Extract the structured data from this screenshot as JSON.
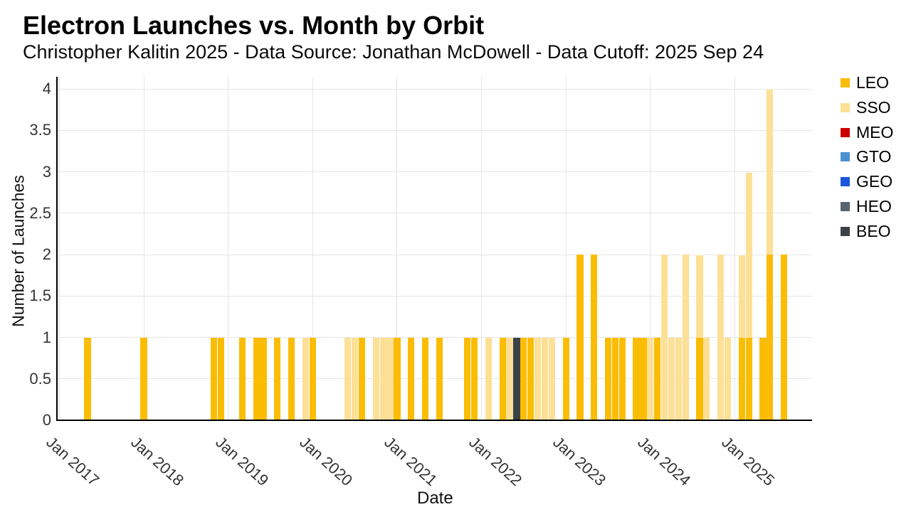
{
  "header": {
    "title": "Electron Launches vs. Month by Orbit",
    "subtitle": "Christopher Kalitin 2025 - Data Source: Jonathan McDowell - Data Cutoff: 2025 Sep 24"
  },
  "chart_data": {
    "type": "bar",
    "stacked": true,
    "title": "Electron Launches vs. Month by Orbit",
    "subtitle": "Christopher Kalitin 2025 - Data Source: Jonathan McDowell - Data Cutoff: 2025 Sep 24",
    "xlabel": "Date",
    "ylabel": "Number of Launches",
    "ylim": [
      0,
      4
    ],
    "yticks": [
      0,
      0.5,
      1,
      1.5,
      2,
      2.5,
      3,
      3.5,
      4
    ],
    "xticks": [
      "Jan 2017",
      "Jan 2018",
      "Jan 2019",
      "Jan 2020",
      "Jan 2021",
      "Jan 2022",
      "Jan 2023",
      "Jan 2024",
      "Jan 2025"
    ],
    "grid": true,
    "legend_position": "right",
    "series_order": [
      "LEO",
      "SSO",
      "MEO",
      "GTO",
      "GEO",
      "HEO",
      "BEO"
    ],
    "legend": [
      {
        "label": "LEO",
        "color": "#FBBC04"
      },
      {
        "label": "SSO",
        "color": "#FDE095"
      },
      {
        "label": "MEO",
        "color": "#CC0000"
      },
      {
        "label": "GTO",
        "color": "#4D90D1"
      },
      {
        "label": "GEO",
        "color": "#1A56DB"
      },
      {
        "label": "HEO",
        "color": "#56646F"
      },
      {
        "label": "BEO",
        "color": "#3B424A"
      }
    ],
    "months": [
      {
        "month": "2017-05",
        "LEO": 1
      },
      {
        "month": "2018-01",
        "LEO": 1
      },
      {
        "month": "2018-11",
        "LEO": 1
      },
      {
        "month": "2018-12",
        "LEO": 1
      },
      {
        "month": "2019-03",
        "LEO": 1
      },
      {
        "month": "2019-05",
        "LEO": 1
      },
      {
        "month": "2019-06",
        "LEO": 1
      },
      {
        "month": "2019-08",
        "LEO": 1
      },
      {
        "month": "2019-10",
        "LEO": 1
      },
      {
        "month": "2019-12",
        "SSO": 1
      },
      {
        "month": "2020-01",
        "LEO": 1
      },
      {
        "month": "2020-06",
        "SSO": 1
      },
      {
        "month": "2020-07",
        "SSO": 1
      },
      {
        "month": "2020-08",
        "LEO": 1
      },
      {
        "month": "2020-10",
        "SSO": 1
      },
      {
        "month": "2020-11",
        "SSO": 1
      },
      {
        "month": "2020-12",
        "SSO": 1
      },
      {
        "month": "2021-01",
        "LEO": 1
      },
      {
        "month": "2021-03",
        "LEO": 1
      },
      {
        "month": "2021-05",
        "LEO": 1
      },
      {
        "month": "2021-07",
        "LEO": 1
      },
      {
        "month": "2021-11",
        "LEO": 1
      },
      {
        "month": "2021-12",
        "LEO": 1
      },
      {
        "month": "2022-02",
        "SSO": 1
      },
      {
        "month": "2022-04",
        "LEO": 1
      },
      {
        "month": "2022-05",
        "SSO": 1
      },
      {
        "month": "2022-06",
        "BEO": 1
      },
      {
        "month": "2022-07",
        "LEO": 1
      },
      {
        "month": "2022-08",
        "LEO": 1
      },
      {
        "month": "2022-09",
        "SSO": 1
      },
      {
        "month": "2022-10",
        "SSO": 1
      },
      {
        "month": "2022-11",
        "SSO": 1
      },
      {
        "month": "2023-01",
        "LEO": 1
      },
      {
        "month": "2023-03",
        "LEO": 2
      },
      {
        "month": "2023-05",
        "LEO": 2
      },
      {
        "month": "2023-07",
        "LEO": 1
      },
      {
        "month": "2023-08",
        "LEO": 1
      },
      {
        "month": "2023-09",
        "LEO": 1
      },
      {
        "month": "2023-11",
        "LEO": 1
      },
      {
        "month": "2023-12",
        "LEO": 1
      },
      {
        "month": "2024-01",
        "SSO": 1
      },
      {
        "month": "2024-02",
        "LEO": 1
      },
      {
        "month": "2024-03",
        "SSO": 2
      },
      {
        "month": "2024-04",
        "SSO": 1
      },
      {
        "month": "2024-05",
        "SSO": 1
      },
      {
        "month": "2024-06",
        "SSO": 2
      },
      {
        "month": "2024-08",
        "LEO": 1,
        "SSO": 1
      },
      {
        "month": "2024-09",
        "SSO": 1
      },
      {
        "month": "2024-11",
        "SSO": 2
      },
      {
        "month": "2024-12",
        "SSO": 1
      },
      {
        "month": "2025-02",
        "LEO": 1,
        "SSO": 1
      },
      {
        "month": "2025-03",
        "LEO": 1,
        "SSO": 2
      },
      {
        "month": "2025-05",
        "LEO": 1
      },
      {
        "month": "2025-06",
        "LEO": 2,
        "SSO": 2
      },
      {
        "month": "2025-08",
        "LEO": 2
      }
    ]
  }
}
